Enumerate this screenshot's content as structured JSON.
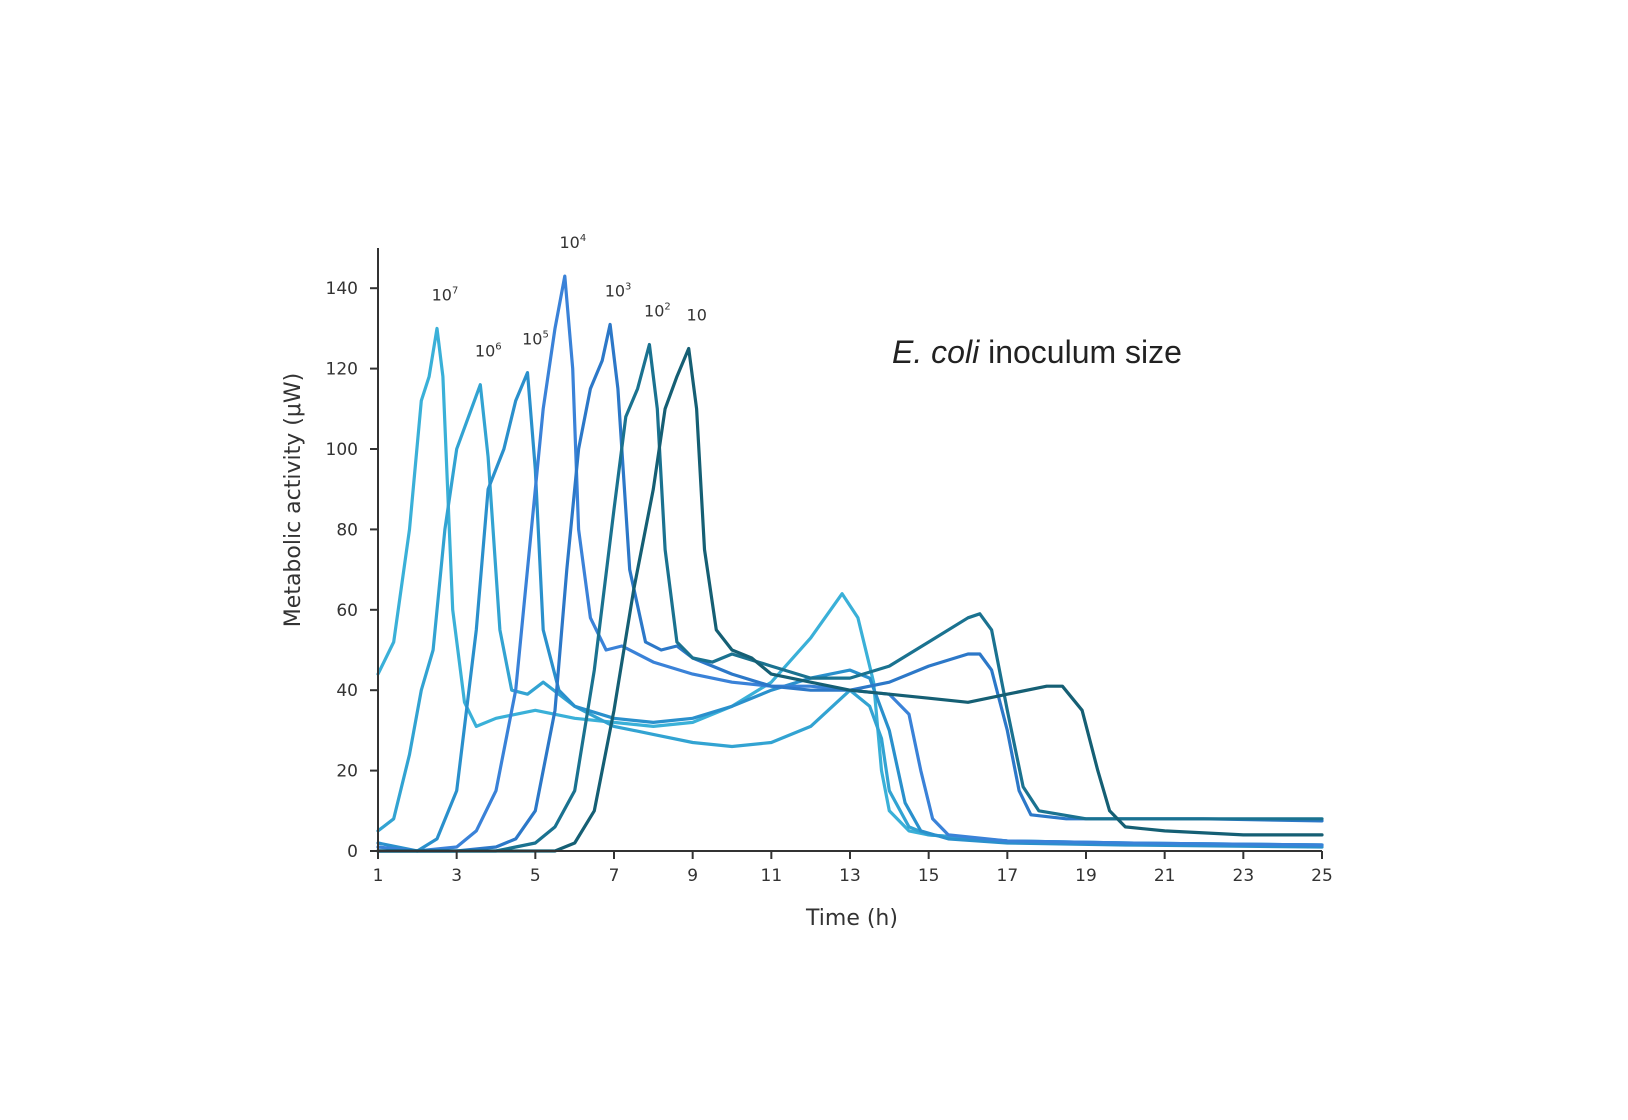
{
  "chart_data": {
    "type": "line",
    "title": "",
    "annotation": {
      "italic": "E. coli",
      "normal": " inoculum size"
    },
    "xlabel": "Time (h)",
    "ylabel": "Metabolic activity (μW)",
    "xlim": [
      1,
      25
    ],
    "ylim": [
      0,
      150
    ],
    "xticks": [
      "1",
      "3",
      "5",
      "7",
      "9",
      "11",
      "13",
      "15",
      "17",
      "19",
      "21",
      "23",
      "25"
    ],
    "yticks": [
      "0",
      "20",
      "40",
      "60",
      "80",
      "100",
      "120",
      "140"
    ],
    "grid": false,
    "series": [
      {
        "name": "10^7",
        "label_base": "10",
        "label_exp": "7",
        "color": "#3ab0d8",
        "points": [
          [
            1,
            44
          ],
          [
            1.4,
            52
          ],
          [
            1.8,
            80
          ],
          [
            2.1,
            112
          ],
          [
            2.3,
            118
          ],
          [
            2.5,
            130
          ],
          [
            2.65,
            118
          ],
          [
            2.9,
            60
          ],
          [
            3.2,
            37
          ],
          [
            3.5,
            31
          ],
          [
            4,
            33
          ],
          [
            5,
            35
          ],
          [
            6,
            33
          ],
          [
            7,
            32
          ],
          [
            8,
            31
          ],
          [
            9,
            32
          ],
          [
            10,
            36
          ],
          [
            11,
            42
          ],
          [
            12,
            53
          ],
          [
            12.8,
            64
          ],
          [
            13.2,
            58
          ],
          [
            13.6,
            42
          ],
          [
            13.8,
            20
          ],
          [
            14,
            10
          ],
          [
            14.5,
            5
          ],
          [
            15,
            4
          ],
          [
            17,
            2.5
          ],
          [
            20,
            2
          ],
          [
            25,
            1.5
          ]
        ]
      },
      {
        "name": "10^6",
        "label_base": "10",
        "label_exp": "6",
        "color": "#32a3d2",
        "points": [
          [
            1,
            5
          ],
          [
            1.4,
            8
          ],
          [
            1.8,
            24
          ],
          [
            2.1,
            40
          ],
          [
            2.4,
            50
          ],
          [
            2.7,
            80
          ],
          [
            3,
            100
          ],
          [
            3.3,
            108
          ],
          [
            3.6,
            116
          ],
          [
            3.8,
            98
          ],
          [
            4.1,
            55
          ],
          [
            4.4,
            40
          ],
          [
            4.8,
            39
          ],
          [
            5.2,
            42
          ],
          [
            6,
            36
          ],
          [
            7,
            31
          ],
          [
            8,
            29
          ],
          [
            9,
            27
          ],
          [
            10,
            26
          ],
          [
            11,
            27
          ],
          [
            12,
            31
          ],
          [
            13,
            40
          ],
          [
            13.5,
            36
          ],
          [
            13.8,
            28
          ],
          [
            14,
            15
          ],
          [
            14.5,
            6
          ],
          [
            15,
            4
          ],
          [
            17,
            2.5
          ],
          [
            20,
            2
          ],
          [
            25,
            1.5
          ]
        ]
      },
      {
        "name": "10^5",
        "label_base": "10",
        "label_exp": "5",
        "color": "#2a90cc",
        "points": [
          [
            1,
            2
          ],
          [
            2,
            0
          ],
          [
            2.5,
            3
          ],
          [
            3,
            15
          ],
          [
            3.5,
            55
          ],
          [
            3.8,
            90
          ],
          [
            4.2,
            100
          ],
          [
            4.5,
            112
          ],
          [
            4.8,
            119
          ],
          [
            5,
            95
          ],
          [
            5.2,
            55
          ],
          [
            5.6,
            40
          ],
          [
            6,
            36
          ],
          [
            7,
            33
          ],
          [
            8,
            32
          ],
          [
            9,
            33
          ],
          [
            10,
            36
          ],
          [
            11,
            40
          ],
          [
            12,
            43
          ],
          [
            13,
            45
          ],
          [
            13.5,
            43
          ],
          [
            14,
            30
          ],
          [
            14.4,
            12
          ],
          [
            14.8,
            5
          ],
          [
            15.5,
            3
          ],
          [
            17,
            2
          ],
          [
            20,
            1.5
          ],
          [
            25,
            1
          ]
        ]
      },
      {
        "name": "10^4",
        "label_base": "10",
        "label_exp": "4",
        "color": "#3a82d8",
        "points": [
          [
            1,
            1
          ],
          [
            2,
            0
          ],
          [
            3,
            1
          ],
          [
            3.5,
            5
          ],
          [
            4,
            15
          ],
          [
            4.5,
            40
          ],
          [
            4.9,
            80
          ],
          [
            5.2,
            110
          ],
          [
            5.5,
            130
          ],
          [
            5.75,
            143
          ],
          [
            5.95,
            120
          ],
          [
            6.1,
            80
          ],
          [
            6.4,
            58
          ],
          [
            6.8,
            50
          ],
          [
            7.2,
            51
          ],
          [
            8,
            47
          ],
          [
            9,
            44
          ],
          [
            10,
            42
          ],
          [
            11,
            41
          ],
          [
            12,
            41
          ],
          [
            13,
            40
          ],
          [
            14,
            39
          ],
          [
            14.5,
            34
          ],
          [
            14.8,
            20
          ],
          [
            15.1,
            8
          ],
          [
            15.5,
            4
          ],
          [
            17,
            2.5
          ],
          [
            20,
            2
          ],
          [
            25,
            1.5
          ]
        ]
      },
      {
        "name": "10^3",
        "label_base": "10",
        "label_exp": "3",
        "color": "#2c78c8",
        "points": [
          [
            1,
            0
          ],
          [
            3,
            0
          ],
          [
            4,
            1
          ],
          [
            4.5,
            3
          ],
          [
            5,
            10
          ],
          [
            5.5,
            35
          ],
          [
            5.8,
            70
          ],
          [
            6.1,
            100
          ],
          [
            6.4,
            115
          ],
          [
            6.7,
            122
          ],
          [
            6.9,
            131
          ],
          [
            7.1,
            115
          ],
          [
            7.4,
            70
          ],
          [
            7.8,
            52
          ],
          [
            8.2,
            50
          ],
          [
            8.6,
            51
          ],
          [
            9,
            48
          ],
          [
            10,
            44
          ],
          [
            11,
            41
          ],
          [
            12,
            40
          ],
          [
            13,
            40
          ],
          [
            14,
            42
          ],
          [
            15,
            46
          ],
          [
            16,
            49
          ],
          [
            16.3,
            49
          ],
          [
            16.6,
            45
          ],
          [
            17,
            30
          ],
          [
            17.3,
            15
          ],
          [
            17.6,
            9
          ],
          [
            18.5,
            8
          ],
          [
            20,
            8
          ],
          [
            22,
            8
          ],
          [
            25,
            7.5
          ]
        ]
      },
      {
        "name": "10^2",
        "label_base": "10",
        "label_exp": "2",
        "color": "#1a7290",
        "points": [
          [
            1,
            0
          ],
          [
            4,
            0
          ],
          [
            5,
            2
          ],
          [
            5.5,
            6
          ],
          [
            6,
            15
          ],
          [
            6.5,
            45
          ],
          [
            7,
            85
          ],
          [
            7.3,
            108
          ],
          [
            7.6,
            115
          ],
          [
            7.9,
            126
          ],
          [
            8.1,
            110
          ],
          [
            8.3,
            75
          ],
          [
            8.6,
            52
          ],
          [
            9,
            48
          ],
          [
            9.5,
            47
          ],
          [
            10,
            49
          ],
          [
            11,
            46
          ],
          [
            12,
            43
          ],
          [
            13,
            43
          ],
          [
            14,
            46
          ],
          [
            15,
            52
          ],
          [
            16,
            58
          ],
          [
            16.3,
            59
          ],
          [
            16.6,
            55
          ],
          [
            17,
            35
          ],
          [
            17.4,
            16
          ],
          [
            17.8,
            10
          ],
          [
            19,
            8
          ],
          [
            21,
            8
          ],
          [
            23,
            8
          ],
          [
            25,
            8
          ]
        ]
      },
      {
        "name": "10",
        "label_base": "10",
        "label_exp": "",
        "color": "#155f74",
        "points": [
          [
            1,
            0
          ],
          [
            5.5,
            0
          ],
          [
            6,
            2
          ],
          [
            6.5,
            10
          ],
          [
            7,
            35
          ],
          [
            7.5,
            65
          ],
          [
            8,
            90
          ],
          [
            8.3,
            110
          ],
          [
            8.6,
            118
          ],
          [
            8.9,
            125
          ],
          [
            9.1,
            110
          ],
          [
            9.3,
            75
          ],
          [
            9.6,
            55
          ],
          [
            10,
            50
          ],
          [
            10.5,
            48
          ],
          [
            11,
            44
          ],
          [
            12,
            42
          ],
          [
            13,
            40
          ],
          [
            14,
            39
          ],
          [
            15,
            38
          ],
          [
            16,
            37
          ],
          [
            17,
            39
          ],
          [
            18,
            41
          ],
          [
            18.4,
            41
          ],
          [
            18.9,
            35
          ],
          [
            19.3,
            20
          ],
          [
            19.6,
            10
          ],
          [
            20,
            6
          ],
          [
            21,
            5
          ],
          [
            23,
            4
          ],
          [
            25,
            4
          ]
        ]
      }
    ]
  }
}
